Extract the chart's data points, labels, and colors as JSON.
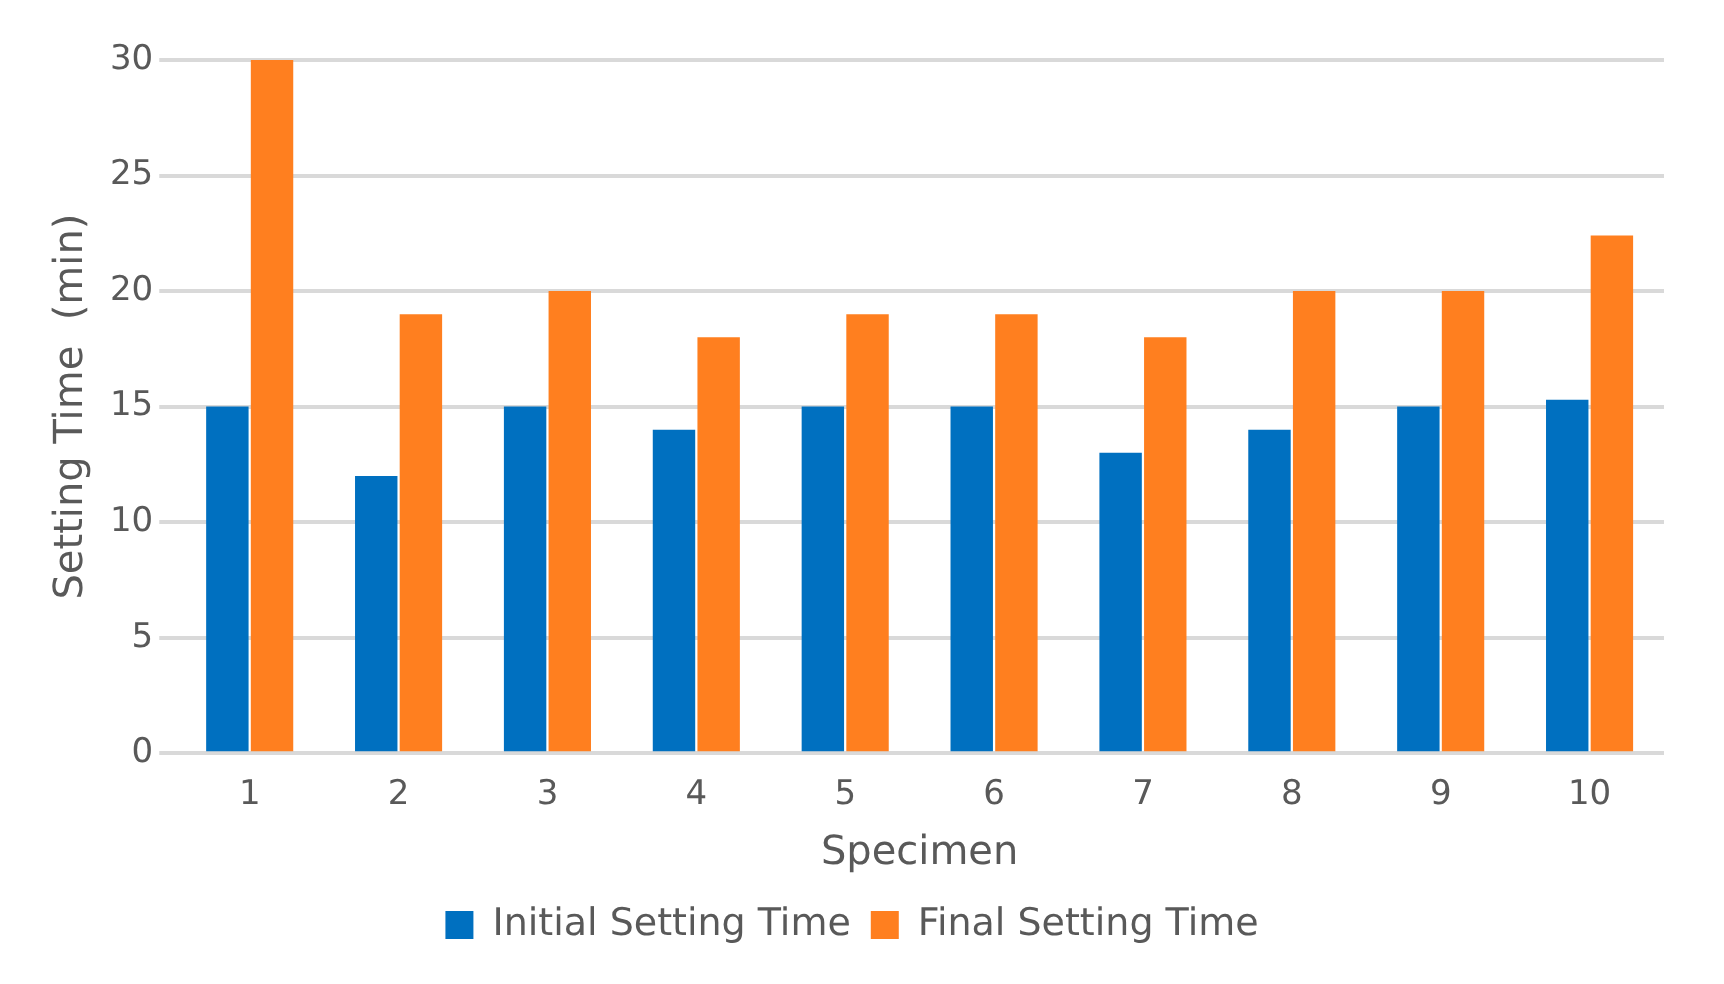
{
  "chart_data": {
    "type": "bar",
    "xlabel": "Specimen",
    "ylabel": "Setting Time  (min)",
    "categories": [
      "1",
      "2",
      "3",
      "4",
      "5",
      "6",
      "7",
      "8",
      "9",
      "10"
    ],
    "series": [
      {
        "name": "Initial Setting Time",
        "color": "#0070c0",
        "values": [
          15,
          12,
          15,
          14,
          15,
          15,
          13,
          14,
          15,
          15.3
        ]
      },
      {
        "name": "Final Setting Time",
        "color": "#ff7f1f",
        "values": [
          30,
          19,
          20,
          18,
          19,
          19,
          18,
          20,
          20,
          22.4
        ]
      }
    ],
    "ylim": [
      0,
      30
    ],
    "yticks": [
      0,
      5,
      10,
      15,
      20,
      25,
      30
    ],
    "grid": "y",
    "legend": "bottom"
  }
}
